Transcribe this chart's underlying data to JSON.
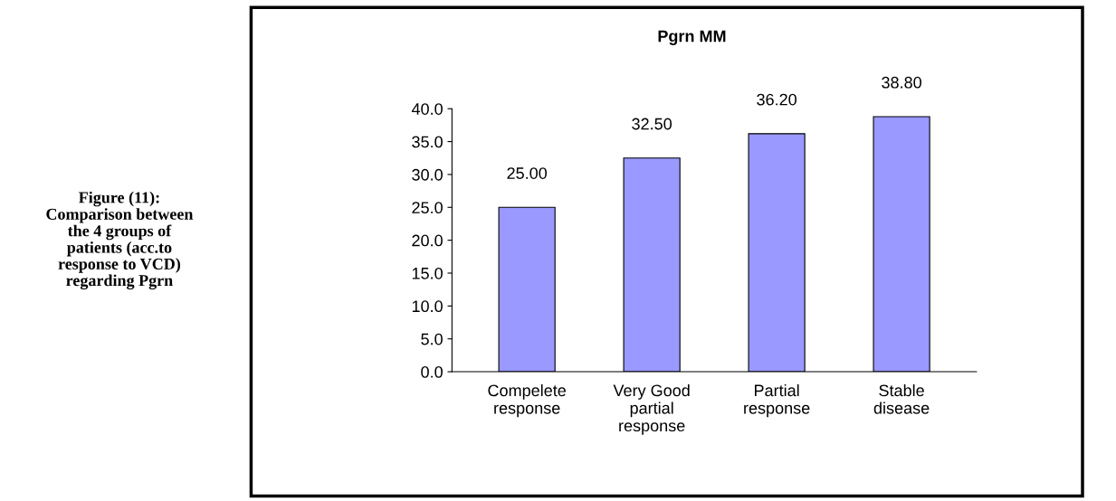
{
  "chart_data": {
    "type": "bar",
    "title": "Pgrn MM",
    "categories": [
      "Compelete\nresponse",
      "Very Good\npartial\nresponse",
      "Partial\nresponse",
      "Stable\ndisease"
    ],
    "values": [
      25.0,
      32.5,
      36.2,
      38.8
    ],
    "value_labels": [
      "25.00",
      "32.50",
      "36.20",
      "38.80"
    ],
    "color": "#9999ff",
    "ylim": [
      0,
      40
    ],
    "yticks": [
      {
        "value": 0,
        "label": "0.0"
      },
      {
        "value": 5,
        "label": "5.0"
      },
      {
        "value": 10,
        "label": "10.0"
      },
      {
        "value": 15,
        "label": "15.0"
      },
      {
        "value": 20,
        "label": "20.0"
      },
      {
        "value": 25,
        "label": "25.0"
      },
      {
        "value": 30,
        "label": "30.0"
      },
      {
        "value": 35,
        "label": "35.0"
      },
      {
        "value": 40,
        "label": "40.0"
      }
    ],
    "grid": false,
    "annotations": [
      "Figure (11):\nComparison between\nthe 4 groups of\npatients (acc.to\nresponse to VCD)\nregarding Pgrn"
    ]
  }
}
